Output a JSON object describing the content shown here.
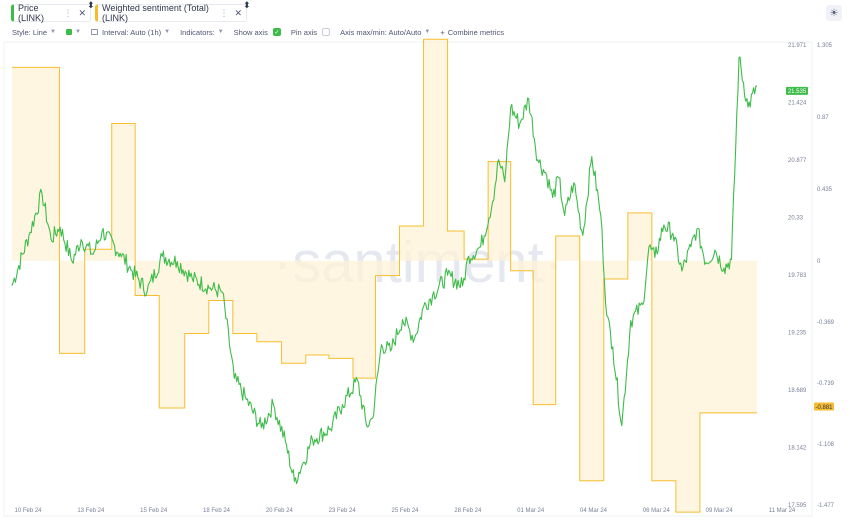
{
  "tabs": [
    {
      "label": "Price (LINK)",
      "color": "#3ebc4a"
    },
    {
      "label": "Weighted sentiment (Total) (LINK)",
      "color": "#f7bd2f"
    }
  ],
  "toolbar": {
    "style": "Style: Line",
    "interval": "Interval: Auto (1h)",
    "indicators": "Indicators:",
    "show_axis": "Show axis",
    "pin_axis": "Pin axis",
    "axis_maxmin": "Axis max/min: Auto/Auto",
    "combine": "Combine metrics"
  },
  "watermark": "·santiment·",
  "chart_data": {
    "type": "line",
    "x_ticks": [
      "10 Feb 24",
      "13 Feb 24",
      "15 Feb 24",
      "18 Feb 24",
      "20 Feb 24",
      "23 Feb 24",
      "25 Feb 24",
      "28 Feb 24",
      "01 Mar 24",
      "04 Mar 24",
      "06 Mar 24",
      "09 Mar 24",
      "11 Mar 24"
    ],
    "price_axis_ticks": [
      "21.971",
      "21.424",
      "20.877",
      "20.33",
      "19.783",
      "19.235",
      "18.689",
      "18.142",
      "17.595"
    ],
    "sentiment_axis_ticks": [
      "1.305",
      "0.87",
      "0.435",
      "0",
      "-0.369",
      "-0.739",
      "-1.108",
      "-1.477"
    ],
    "price_ylim": [
      17.595,
      21.971
    ],
    "sentiment_ylim": [
      -1.477,
      1.305
    ],
    "current_price_label": "21.535",
    "current_sentiment_label": "-0.881",
    "series": [
      {
        "name": "Price (LINK)",
        "color": "#3ebc4a",
        "keypoints": [
          [
            0,
            19.68
          ],
          [
            0.6,
            20.19
          ],
          [
            1,
            20.56
          ],
          [
            1.3,
            20.12
          ],
          [
            1.6,
            20.24
          ],
          [
            2,
            19.91
          ],
          [
            2.3,
            20.12
          ],
          [
            2.7,
            19.98
          ],
          [
            3,
            20.2
          ],
          [
            3.6,
            19.99
          ],
          [
            4,
            19.82
          ],
          [
            4.5,
            19.63
          ],
          [
            5,
            19.96
          ],
          [
            5.5,
            19.91
          ],
          [
            6,
            19.75
          ],
          [
            6.6,
            19.66
          ],
          [
            7,
            19.62
          ],
          [
            7.4,
            18.8
          ],
          [
            7.8,
            18.6
          ],
          [
            8.3,
            18.33
          ],
          [
            8.7,
            18.55
          ],
          [
            9.1,
            18.2
          ],
          [
            9.4,
            17.82
          ],
          [
            9.7,
            18.0
          ],
          [
            10,
            18.22
          ],
          [
            10.6,
            18.32
          ],
          [
            11,
            18.55
          ],
          [
            11.5,
            18.78
          ],
          [
            11.8,
            18.35
          ],
          [
            12,
            18.42
          ],
          [
            12.3,
            19.12
          ],
          [
            12.6,
            19.06
          ],
          [
            13,
            19.36
          ],
          [
            13.4,
            19.18
          ],
          [
            13.7,
            19.48
          ],
          [
            14,
            19.59
          ],
          [
            14.5,
            19.78
          ],
          [
            15,
            19.68
          ],
          [
            15.2,
            19.96
          ],
          [
            15.6,
            20.05
          ],
          [
            16,
            20.48
          ],
          [
            16.2,
            20.88
          ],
          [
            16.4,
            20.67
          ],
          [
            16.6,
            21.38
          ],
          [
            16.9,
            21.22
          ],
          [
            17.2,
            21.46
          ],
          [
            17.5,
            20.88
          ],
          [
            17.8,
            20.73
          ],
          [
            18,
            20.52
          ],
          [
            18.2,
            20.71
          ],
          [
            18.4,
            20.35
          ],
          [
            18.7,
            20.66
          ],
          [
            19,
            20.16
          ],
          [
            19.3,
            20.91
          ],
          [
            19.6,
            20.35
          ],
          [
            19.8,
            19.4
          ],
          [
            20,
            19.1
          ],
          [
            20.3,
            18.35
          ],
          [
            20.6,
            19.35
          ],
          [
            21,
            19.5
          ],
          [
            21.2,
            20.05
          ],
          [
            21.4,
            19.95
          ],
          [
            21.7,
            20.26
          ],
          [
            22,
            20.18
          ],
          [
            22.3,
            19.82
          ],
          [
            22.6,
            20.05
          ],
          [
            22.8,
            20.22
          ],
          [
            23.1,
            19.9
          ],
          [
            23.4,
            20.02
          ],
          [
            23.7,
            19.85
          ],
          [
            23.95,
            19.93
          ],
          [
            24.2,
            21.85
          ],
          [
            24.5,
            21.38
          ],
          [
            24.8,
            21.58
          ]
        ]
      },
      {
        "name": "Weighted sentiment (Total) (LINK)",
        "color": "#f7bd2f",
        "steps": [
          [
            0,
            1.17
          ],
          [
            1.58,
            -0.56
          ],
          [
            2.42,
            0.07
          ],
          [
            3.32,
            0.83
          ],
          [
            4.1,
            -0.21
          ],
          [
            4.9,
            -0.89
          ],
          [
            5.75,
            -0.44
          ],
          [
            6.55,
            -0.24
          ],
          [
            7.35,
            -0.44
          ],
          [
            8.15,
            -0.49
          ],
          [
            8.97,
            -0.62
          ],
          [
            9.78,
            -0.57
          ],
          [
            10.55,
            -0.59
          ],
          [
            11.35,
            -0.71
          ],
          [
            12.1,
            -0.09
          ],
          [
            12.9,
            0.21
          ],
          [
            13.7,
            1.34
          ],
          [
            14.5,
            0.18
          ],
          [
            15.05,
            0.01
          ],
          [
            15.85,
            0.6
          ],
          [
            16.6,
            -0.06
          ],
          [
            17.35,
            -0.87
          ],
          [
            18.1,
            0.15
          ],
          [
            18.9,
            -1.33
          ],
          [
            19.7,
            -0.11
          ],
          [
            20.5,
            0.29
          ],
          [
            21.3,
            -1.33
          ],
          [
            22.1,
            -1.52
          ],
          [
            22.9,
            -0.92
          ],
          [
            23.7,
            -0.92
          ]
        ]
      }
    ]
  }
}
